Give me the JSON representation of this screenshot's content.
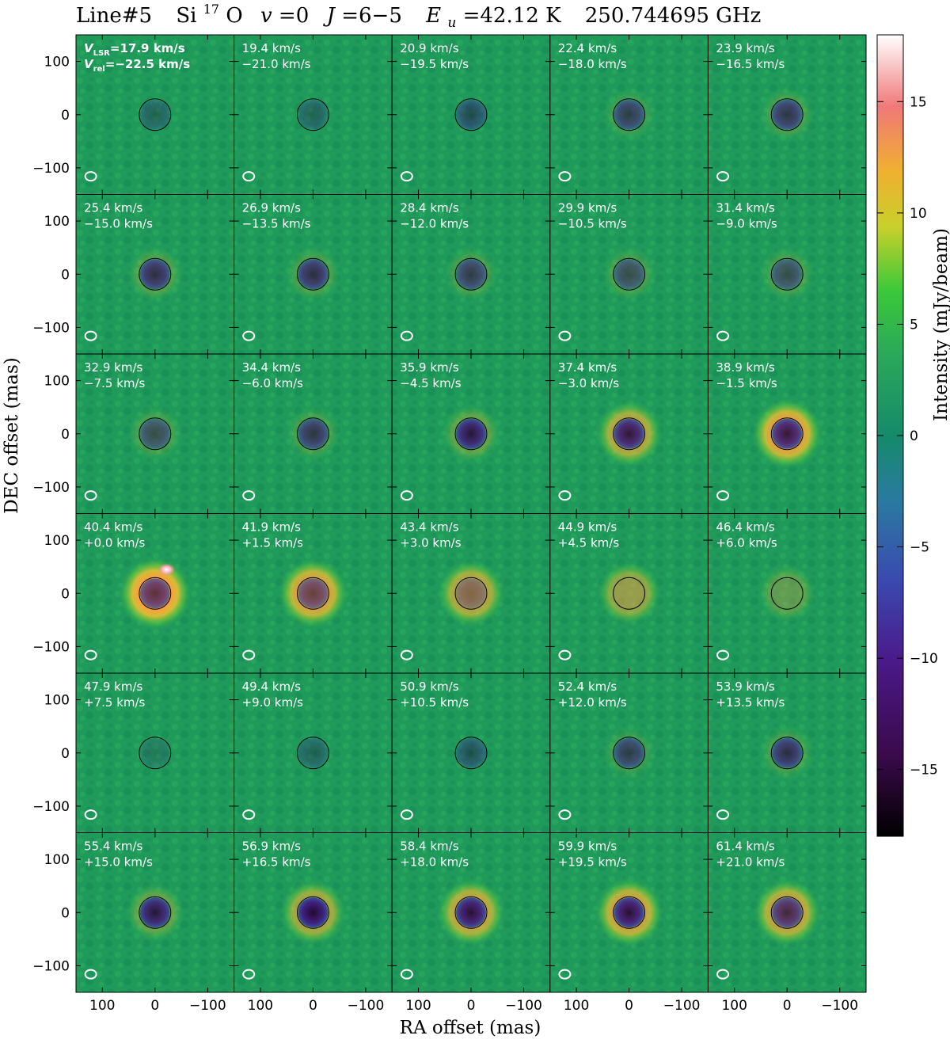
{
  "header": {
    "line_id": "Line#5",
    "species_base": "Si",
    "species_isotope": "17",
    "species_tail": "O",
    "v_symbol": "v",
    "v_value": "=0",
    "j_symbol": "J",
    "j_value": "=6−5",
    "e_symbol": "E",
    "e_sub": "u",
    "e_value": "=42.12 K",
    "frequency": "250.744695 GHz"
  },
  "colors": {
    "background": "#1f9a5a",
    "stellar_disk": "#2b0a4a",
    "circle_stroke": "#000000",
    "beam": "#ffffff",
    "label_text": "#ffffff"
  },
  "chart_data": {
    "type": "heatmap",
    "title": "Line#5 Si17O v=0 J=6−5 Eu=42.12 K 250.744695 GHz",
    "xlabel": "RA offset (mas)",
    "ylabel": "DEC offset (mas)",
    "xlim": [
      150,
      -150
    ],
    "ylim": [
      -150,
      150
    ],
    "x_ticks": [
      "100",
      "0",
      "−100"
    ],
    "y_ticks": [
      "100",
      "0",
      "−100"
    ],
    "first_panel_lsr_prefix": "V",
    "first_panel_lsr_sub": "LSR",
    "first_panel_rel_prefix": "V",
    "first_panel_rel_sub": "rel",
    "colorbar": {
      "label": "Intensity (mJy/beam)",
      "range": [
        -18,
        18
      ],
      "ticks": [
        "15",
        "10",
        "5",
        "0",
        "−5",
        "−10",
        "−15"
      ],
      "tick_values": [
        15,
        10,
        5,
        0,
        -5,
        -10,
        -15
      ]
    },
    "stellar_radius_mas": 30,
    "panels": [
      {
        "vlsr": "17.9 km/s",
        "vrel": "−22.5 km/s",
        "ring": 0.0,
        "disk": 0.35,
        "blob": 0
      },
      {
        "vlsr": "19.4 km/s",
        "vrel": "−21.0 km/s",
        "ring": 0.0,
        "disk": 0.35,
        "blob": 0
      },
      {
        "vlsr": "20.9 km/s",
        "vrel": "−19.5 km/s",
        "ring": 0.0,
        "disk": 0.5,
        "blob": 0
      },
      {
        "vlsr": "22.4 km/s",
        "vrel": "−18.0 km/s",
        "ring": 0.05,
        "disk": 0.6,
        "blob": 0
      },
      {
        "vlsr": "23.9 km/s",
        "vrel": "−16.5 km/s",
        "ring": 0.1,
        "disk": 0.65,
        "blob": 0
      },
      {
        "vlsr": "25.4 km/s",
        "vrel": "−15.0 km/s",
        "ring": 0.15,
        "disk": 0.7,
        "blob": 0
      },
      {
        "vlsr": "26.9 km/s",
        "vrel": "−13.5 km/s",
        "ring": 0.12,
        "disk": 0.7,
        "blob": 0
      },
      {
        "vlsr": "28.4 km/s",
        "vrel": "−12.0 km/s",
        "ring": 0.1,
        "disk": 0.6,
        "blob": 0
      },
      {
        "vlsr": "29.9 km/s",
        "vrel": "−10.5 km/s",
        "ring": 0.1,
        "disk": 0.5,
        "blob": 0
      },
      {
        "vlsr": "31.4 km/s",
        "vrel": "−9.0 km/s",
        "ring": 0.1,
        "disk": 0.5,
        "blob": 0
      },
      {
        "vlsr": "32.9 km/s",
        "vrel": "−7.5 km/s",
        "ring": 0.1,
        "disk": 0.5,
        "blob": 0
      },
      {
        "vlsr": "34.4 km/s",
        "vrel": "−6.0 km/s",
        "ring": 0.1,
        "disk": 0.65,
        "blob": 0
      },
      {
        "vlsr": "35.9 km/s",
        "vrel": "−4.5 km/s",
        "ring": 0.25,
        "disk": 0.85,
        "blob": 0
      },
      {
        "vlsr": "37.4 km/s",
        "vrel": "−3.0 km/s",
        "ring": 0.6,
        "disk": 0.85,
        "blob": 0
      },
      {
        "vlsr": "38.9 km/s",
        "vrel": "−1.5 km/s",
        "ring": 0.8,
        "disk": 0.85,
        "blob": 0
      },
      {
        "vlsr": "40.4 km/s",
        "vrel": "+0.0 km/s",
        "ring": 0.9,
        "disk": 0.7,
        "blob": 1
      },
      {
        "vlsr": "41.9 km/s",
        "vrel": "+1.5 km/s",
        "ring": 0.75,
        "disk": 0.6,
        "blob": 0
      },
      {
        "vlsr": "43.4 km/s",
        "vrel": "+3.0 km/s",
        "ring": 0.6,
        "disk": 0.35,
        "blob": 0
      },
      {
        "vlsr": "44.9 km/s",
        "vrel": "+4.5 km/s",
        "ring": 0.45,
        "disk": 0.0,
        "blob": 0
      },
      {
        "vlsr": "46.4 km/s",
        "vrel": "+6.0 km/s",
        "ring": 0.2,
        "disk": 0.0,
        "blob": 0
      },
      {
        "vlsr": "47.9 km/s",
        "vrel": "+7.5 km/s",
        "ring": 0.0,
        "disk": 0.2,
        "blob": 0
      },
      {
        "vlsr": "49.4 km/s",
        "vrel": "+9.0 km/s",
        "ring": 0.0,
        "disk": 0.35,
        "blob": 0
      },
      {
        "vlsr": "50.9 km/s",
        "vrel": "+10.5 km/s",
        "ring": 0.0,
        "disk": 0.45,
        "blob": 0
      },
      {
        "vlsr": "52.4 km/s",
        "vrel": "+12.0 km/s",
        "ring": 0.05,
        "disk": 0.6,
        "blob": 0
      },
      {
        "vlsr": "53.9 km/s",
        "vrel": "+13.5 km/s",
        "ring": 0.1,
        "disk": 0.7,
        "blob": 0
      },
      {
        "vlsr": "55.4 km/s",
        "vrel": "+15.0 km/s",
        "ring": 0.25,
        "disk": 0.85,
        "blob": 0
      },
      {
        "vlsr": "56.9 km/s",
        "vrel": "+16.5 km/s",
        "ring": 0.55,
        "disk": 0.95,
        "blob": 0
      },
      {
        "vlsr": "58.4 km/s",
        "vrel": "+18.0 km/s",
        "ring": 0.65,
        "disk": 0.9,
        "blob": 0
      },
      {
        "vlsr": "59.9 km/s",
        "vrel": "+19.5 km/s",
        "ring": 0.7,
        "disk": 0.9,
        "blob": 0
      },
      {
        "vlsr": "61.4 km/s",
        "vrel": "+21.0 km/s",
        "ring": 0.65,
        "disk": 0.75,
        "blob": 0
      }
    ]
  }
}
